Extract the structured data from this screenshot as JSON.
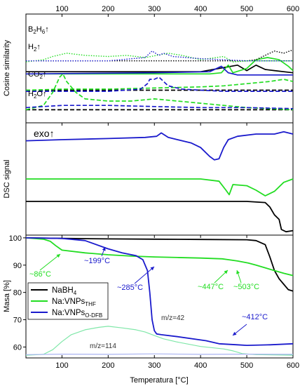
{
  "figure": {
    "x_axis": {
      "label": "Temperatura [°C]",
      "range": [
        22,
        600
      ],
      "ticks": [
        100,
        200,
        300,
        400,
        500,
        600
      ]
    },
    "legend_title": ""
  },
  "colors": {
    "nabh4": "#000000",
    "thf": "#22dd22",
    "odfb": "#1a1acc",
    "ms42": "#7fe7a8",
    "ms114": "#aab4f2"
  },
  "chart_data": [
    {
      "type": "line",
      "panel": "cosine-similarity",
      "ylabel": "Cosine similarity",
      "grid": false,
      "x_range": [
        22,
        600
      ],
      "gas_labels": [
        {
          "base": "B",
          "sub": "2",
          "base2": "H",
          "sub2": "6",
          "arrow": "↑"
        },
        {
          "base": "H",
          "sub": "2",
          "arrow": "↑"
        },
        {
          "base": "CO",
          "sub": "2",
          "arrow": "↑"
        },
        {
          "base": "H",
          "sub": "2",
          "base2": "O",
          "arrow": "↑"
        }
      ],
      "series": [
        {
          "gas": "H2",
          "sample": "NaBH4",
          "style": "solid",
          "color_key": "nabh4",
          "x": [
            22,
            100,
            200,
            300,
            400,
            440,
            480,
            500,
            520,
            540,
            560,
            600
          ],
          "y": [
            0.47,
            0.47,
            0.47,
            0.47,
            0.47,
            0.5,
            0.53,
            0.48,
            0.53,
            0.49,
            0.48,
            0.46
          ]
        },
        {
          "gas": "H2",
          "sample": "Na:VNPs THF",
          "style": "solid",
          "color_key": "thf",
          "x": [
            22,
            300,
            420,
            445,
            460,
            470,
            500,
            520,
            545,
            570,
            590,
            600
          ],
          "y": [
            0.45,
            0.45,
            0.45,
            0.46,
            0.53,
            0.46,
            0.5,
            0.58,
            0.6,
            0.58,
            0.52,
            0.48
          ]
        },
        {
          "gas": "H2",
          "sample": "Na:VNPs O-DFB",
          "style": "solid",
          "color_key": "odfb",
          "x": [
            22,
            300,
            420,
            445,
            460,
            480,
            600
          ],
          "y": [
            0.45,
            0.46,
            0.47,
            0.52,
            0.46,
            0.44,
            0.44
          ]
        },
        {
          "gas": "B2H6",
          "sample": "NaBH4",
          "style": "dotted",
          "color_key": "nabh4",
          "x": [
            22,
            300,
            450,
            500,
            520,
            545,
            560,
            580,
            600
          ],
          "y": [
            0.57,
            0.57,
            0.57,
            0.57,
            0.58,
            0.63,
            0.66,
            0.64,
            0.67
          ]
        },
        {
          "gas": "B2H6",
          "sample": "Na:VNPs THF",
          "style": "dotted",
          "color_key": "thf",
          "x": [
            22,
            60,
            80,
            110,
            150,
            200,
            240,
            280,
            330,
            360,
            400,
            450,
            470,
            500,
            600
          ],
          "y": [
            0.56,
            0.58,
            0.61,
            0.64,
            0.62,
            0.61,
            0.62,
            0.6,
            0.64,
            0.62,
            0.58,
            0.61,
            0.56,
            0.57,
            0.57
          ]
        },
        {
          "gas": "B2H6",
          "sample": "Na:VNPs O-DFB",
          "style": "dotted",
          "color_key": "odfb",
          "x": [
            22,
            200,
            280,
            295,
            310,
            320,
            340,
            400,
            450,
            500,
            600
          ],
          "y": [
            0.57,
            0.57,
            0.6,
            0.66,
            0.62,
            0.64,
            0.61,
            0.59,
            0.58,
            0.57,
            0.57
          ]
        },
        {
          "gas": "CO2",
          "sample": "NaBH4",
          "style": "dashed",
          "color_key": "nabh4",
          "x": [
            22,
            300,
            600
          ],
          "y": [
            0.3,
            0.3,
            0.3
          ]
        },
        {
          "gas": "CO2",
          "sample": "Na:VNPs THF",
          "style": "dashed",
          "color_key": "thf",
          "x": [
            22,
            100,
            200,
            300,
            400,
            450,
            500,
            550,
            580,
            600
          ],
          "y": [
            0.3,
            0.31,
            0.31,
            0.32,
            0.33,
            0.34,
            0.36,
            0.38,
            0.4,
            0.38
          ]
        },
        {
          "gas": "CO2",
          "sample": "Na:VNPs O-DFB",
          "style": "dashed",
          "color_key": "odfb",
          "x": [
            22,
            200,
            270,
            285,
            290,
            300,
            310,
            320,
            330,
            360,
            400,
            450,
            600
          ],
          "y": [
            0.29,
            0.29,
            0.31,
            0.36,
            0.4,
            0.4,
            0.42,
            0.38,
            0.34,
            0.31,
            0.3,
            0.29,
            0.29
          ]
        },
        {
          "gas": "H2O",
          "sample": "NaBH4",
          "style": "dashed",
          "color_key": "nabh4",
          "x": [
            22,
            300,
            600
          ],
          "y": [
            0.12,
            0.12,
            0.12
          ]
        },
        {
          "gas": "H2O",
          "sample": "Na:VNPs THF",
          "style": "dashed",
          "color_key": "thf",
          "x": [
            22,
            60,
            80,
            95,
            102,
            110,
            130,
            150,
            200,
            250,
            300,
            400,
            500,
            600
          ],
          "y": [
            0.12,
            0.16,
            0.28,
            0.42,
            0.45,
            0.38,
            0.28,
            0.22,
            0.2,
            0.2,
            0.22,
            0.18,
            0.14,
            0.12
          ]
        },
        {
          "gas": "H2O",
          "sample": "Na:VNPs O-DFB",
          "style": "dashed",
          "color_key": "odfb",
          "x": [
            22,
            100,
            200,
            300,
            400,
            500,
            600
          ],
          "y": [
            0.14,
            0.16,
            0.16,
            0.15,
            0.14,
            0.14,
            0.13
          ]
        }
      ]
    },
    {
      "type": "line",
      "panel": "dsc",
      "ylabel": "DSC signal",
      "annotation": "exo↑",
      "grid": false,
      "x_range": [
        22,
        600
      ],
      "series": [
        {
          "sample": "Na:VNPs O-DFB",
          "color_key": "odfb",
          "x": [
            22,
            100,
            200,
            280,
            305,
            315,
            330,
            350,
            380,
            400,
            420,
            430,
            440,
            450,
            460,
            480,
            520,
            560,
            580,
            590,
            600
          ],
          "y": [
            0.84,
            0.85,
            0.86,
            0.87,
            0.88,
            0.91,
            0.87,
            0.85,
            0.82,
            0.78,
            0.7,
            0.67,
            0.68,
            0.78,
            0.85,
            0.88,
            0.9,
            0.9,
            0.92,
            0.91,
            0.9
          ]
        },
        {
          "sample": "Na:VNPs THF",
          "color_key": "thf",
          "x": [
            22,
            100,
            200,
            300,
            400,
            440,
            455,
            462,
            470,
            500,
            520,
            540,
            560,
            580,
            600
          ],
          "y": [
            0.5,
            0.5,
            0.5,
            0.5,
            0.5,
            0.48,
            0.4,
            0.36,
            0.45,
            0.44,
            0.4,
            0.35,
            0.39,
            0.47,
            0.5
          ]
        },
        {
          "sample": "NaBH4",
          "color_key": "nabh4",
          "x": [
            22,
            100,
            200,
            300,
            400,
            500,
            540,
            550,
            560,
            570,
            575,
            585,
            600
          ],
          "y": [
            0.3,
            0.3,
            0.3,
            0.3,
            0.3,
            0.3,
            0.29,
            0.25,
            0.18,
            0.14,
            0.05,
            0.03,
            0.04
          ]
        }
      ]
    },
    {
      "type": "line",
      "panel": "tga",
      "ylabel": "Masa [%]",
      "ylim": [
        56,
        101
      ],
      "y_ticks": [
        60,
        70,
        80,
        90,
        100
      ],
      "grid": false,
      "legend_position": "left",
      "legend_entries": [
        {
          "base": "NaBH",
          "sub": "4",
          "color_key": "nabh4"
        },
        {
          "base": "Na:VNPs",
          "sub": "THF",
          "color_key": "thf"
        },
        {
          "base": "Na:VNPs",
          "sub": "O-DFB",
          "color_key": "odfb"
        }
      ],
      "annotations": {
        "thf_86": "~86°C",
        "odfb_199": "~199°C",
        "odfb_285": "~285°C",
        "thf_447": "~447°C",
        "thf_503": "~503°C",
        "odfb_412": "~412°C",
        "mz42": "m/z=42",
        "mz114": "m/z=114"
      },
      "series": [
        {
          "name": "NaBH4",
          "color_key": "nabh4",
          "x": [
            22,
            100,
            200,
            300,
            400,
            500,
            520,
            540,
            550,
            560,
            570,
            580,
            590,
            600
          ],
          "y": [
            100,
            99.8,
            99.6,
            99.5,
            99.4,
            99.3,
            99.0,
            97.5,
            93.0,
            88.0,
            85.0,
            83.0,
            81.0,
            80.5
          ]
        },
        {
          "name": "Na:VNPs THF",
          "color_key": "thf",
          "x": [
            22,
            60,
            75,
            86,
            100,
            150,
            200,
            250,
            300,
            350,
            400,
            447,
            460,
            480,
            503,
            520,
            550,
            580,
            600
          ],
          "y": [
            100,
            99.5,
            98.7,
            97.2,
            95.5,
            94.5,
            93.8,
            93.3,
            93.0,
            92.8,
            92.6,
            92.3,
            92.0,
            91.5,
            90.8,
            90.0,
            88.5,
            87.0,
            86.2
          ]
        },
        {
          "name": "Na:VNPs O-DFB",
          "color_key": "odfb",
          "x": [
            22,
            100,
            150,
            199,
            230,
            260,
            275,
            285,
            290,
            295,
            300,
            305,
            315,
            350,
            412,
            440,
            480,
            500,
            550,
            600
          ],
          "y": [
            100,
            99.8,
            99.0,
            96.0,
            94.5,
            93.5,
            92.0,
            88.0,
            80.0,
            70.0,
            66.0,
            64.8,
            64.5,
            63.8,
            62.3,
            61.2,
            60.8,
            60.6,
            60.8,
            61.2
          ]
        },
        {
          "name": "m/z=42",
          "color_key": "ms42",
          "x": [
            22,
            60,
            80,
            100,
            120,
            150,
            180,
            200,
            230,
            260,
            280,
            300,
            320,
            350,
            400,
            450,
            470,
            490,
            520,
            600
          ],
          "y": [
            57,
            57.3,
            59,
            62,
            64.5,
            66.3,
            67.2,
            67.6,
            67.0,
            66.3,
            65.5,
            64.2,
            63.0,
            61.8,
            60.2,
            59.3,
            58.6,
            57.6,
            57.2,
            57.0
          ]
        },
        {
          "name": "m/z=114",
          "color_key": "ms114",
          "x": [
            22,
            100,
            200,
            300,
            400,
            500,
            600
          ],
          "y": [
            57.2,
            57.4,
            57.3,
            57.5,
            57.3,
            57.4,
            57.3
          ]
        }
      ]
    }
  ]
}
